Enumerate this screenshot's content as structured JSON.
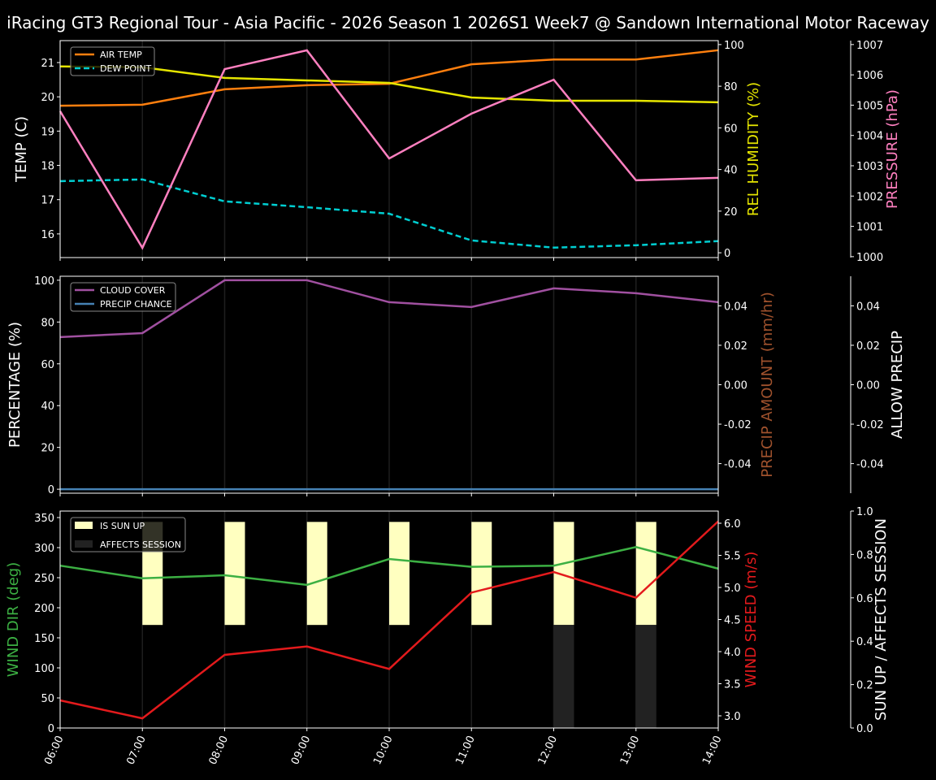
{
  "title": "iRacing GT3 Regional Tour - Asia Pacific - 2026 Season 1 2026S1 Week7 @ Sandown International Motor Raceway",
  "chart_data": [
    {
      "type": "line",
      "x": [
        "06:00",
        "07:00",
        "08:00",
        "09:00",
        "10:00",
        "11:00",
        "12:00",
        "13:00",
        "14:00"
      ],
      "grid": "vertical",
      "legend": "top-left",
      "axes": [
        {
          "side": "left",
          "label": "TEMP (C)",
          "color": "#ffffff",
          "range": [
            15.31,
            21.64
          ],
          "ticks": [
            16,
            17,
            18,
            19,
            20,
            21
          ]
        },
        {
          "side": "right",
          "label": "REL HUMIDITY (%)",
          "color": "#e5e500",
          "range": [
            -2.3,
            101.9
          ],
          "ticks": [
            0,
            20,
            40,
            60,
            80,
            100
          ]
        },
        {
          "side": "right2",
          "label": "PRESSURE (hPa)",
          "color": "#ff80c0",
          "range": [
            999.97,
            1007.13
          ],
          "ticks": [
            1000,
            1001,
            1002,
            1003,
            1004,
            1005,
            1006,
            1007
          ]
        }
      ],
      "series": [
        {
          "name": "AIR TEMP",
          "axis": 0,
          "color": "#ff7f0e",
          "dash": false,
          "legend": true,
          "values": [
            19.74,
            19.77,
            20.22,
            20.34,
            20.38,
            20.95,
            21.09,
            21.09,
            21.36
          ]
        },
        {
          "name": "DEW POINT",
          "axis": 0,
          "color": "#00ced1",
          "dash": true,
          "legend": true,
          "values": [
            17.54,
            17.59,
            16.95,
            16.78,
            16.59,
            15.81,
            15.6,
            15.67,
            15.79
          ]
        },
        {
          "axis": 1,
          "color": "#e5e500",
          "dash": false,
          "legend": false,
          "values": [
            89.5,
            89.1,
            84.0,
            82.8,
            81.6,
            74.6,
            73.0,
            73.0,
            72.3
          ]
        },
        {
          "axis": 2,
          "color": "#ff80c0",
          "dash": false,
          "legend": false,
          "values": [
            1004.8,
            1000.29,
            1006.19,
            1006.81,
            1003.24,
            1004.72,
            1005.84,
            1002.52,
            1002.6
          ]
        }
      ]
    },
    {
      "type": "line",
      "x": [
        "06:00",
        "07:00",
        "08:00",
        "09:00",
        "10:00",
        "11:00",
        "12:00",
        "13:00",
        "14:00"
      ],
      "grid": "vertical",
      "legend": "top-left",
      "axes": [
        {
          "side": "left",
          "label": "PERCENTAGE (%)",
          "color": "#ffffff",
          "range": [
            -1.9,
            101.9
          ],
          "ticks": [
            0,
            20,
            40,
            60,
            80,
            100
          ]
        },
        {
          "side": "right",
          "label": "PRECIP AMOUNT (mm/hr)",
          "color": "#a0522d",
          "range": [
            -0.055,
            0.055
          ],
          "ticks": [
            -0.04,
            -0.02,
            0.0,
            0.02,
            0.04
          ]
        },
        {
          "side": "right2",
          "label": "ALLOW PRECIP",
          "color": "#ffffff",
          "range": [
            -0.055,
            0.055
          ],
          "ticks": [
            -0.04,
            -0.02,
            0.0,
            0.02,
            0.04
          ]
        }
      ],
      "series": [
        {
          "name": "CLOUD COVER",
          "axis": 0,
          "color": "#a050a0",
          "dash": false,
          "legend": true,
          "values": [
            72.8,
            74.7,
            100,
            100,
            89.5,
            87.2,
            96.1,
            93.8,
            89.5
          ]
        },
        {
          "name": "PRECIP CHANCE",
          "axis": 0,
          "color": "#4682b4",
          "dash": false,
          "legend": true,
          "values": [
            0,
            0,
            0,
            0,
            0,
            0,
            0,
            0,
            0
          ]
        }
      ]
    },
    {
      "type": "line",
      "x": [
        "06:00",
        "07:00",
        "08:00",
        "09:00",
        "10:00",
        "11:00",
        "12:00",
        "13:00",
        "14:00"
      ],
      "grid": "vertical",
      "legend": "top-left",
      "axes": [
        {
          "side": "left",
          "label": "WIND DIR (deg)",
          "color": "#3cb043",
          "range": [
            0,
            360.8
          ],
          "ticks": [
            0,
            50,
            100,
            150,
            200,
            250,
            300,
            350
          ]
        },
        {
          "side": "right",
          "label": "WIND SPEED (m/s)",
          "color": "#e31a1c",
          "range": [
            2.81,
            6.19
          ],
          "ticks": [
            3.0,
            3.5,
            4.0,
            4.5,
            5.0,
            5.5,
            6.0
          ]
        },
        {
          "side": "right2",
          "label": "SUN UP / AFFECTS SESSION",
          "color": "#ffffff",
          "range": [
            0,
            1.0
          ],
          "ticks": [
            0.0,
            0.2,
            0.4,
            0.6,
            0.8,
            1.0
          ]
        }
      ],
      "bars": [
        {
          "name": "IS SUN UP",
          "color": "#ffffc0",
          "range": [
            0.475,
            0.95
          ],
          "values": [
            0,
            1,
            1,
            1,
            1,
            1,
            1,
            1,
            0
          ]
        },
        {
          "name": "AFFECTS SESSION",
          "color": "#222222",
          "range": [
            0,
            0.475
          ],
          "values": [
            0,
            0,
            0,
            0,
            0,
            0,
            1,
            1,
            0
          ]
        }
      ],
      "series": [
        {
          "axis": 0,
          "color": "#3cb043",
          "dash": false,
          "legend": false,
          "values": [
            270,
            249,
            254,
            238,
            281,
            268,
            270,
            301,
            265
          ]
        },
        {
          "axis": 1,
          "color": "#e31a1c",
          "dash": false,
          "legend": false,
          "values": [
            3.24,
            2.96,
            3.95,
            4.08,
            3.73,
            4.92,
            5.24,
            4.84,
            6.03
          ]
        }
      ]
    }
  ]
}
